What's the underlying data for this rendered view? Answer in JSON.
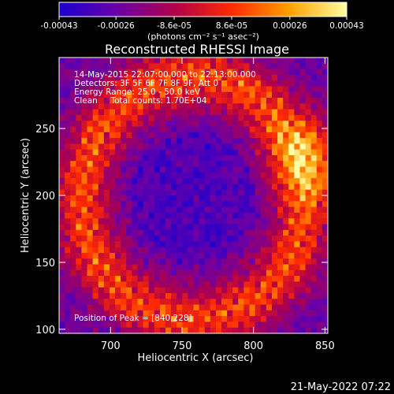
{
  "colorbar": {
    "tick_labels": [
      "-0.00043",
      "-0.00026",
      "-8.6e-05",
      "8.6e-05",
      "0.00026",
      "0.00043"
    ],
    "unit_label": "(photons cm⁻² s⁻¹ asec⁻²)",
    "range": [
      -0.00043,
      0.00043
    ],
    "colors": [
      "#1a00d0",
      "#6a00a8",
      "#b0004a",
      "#ff2a00",
      "#ffa000",
      "#ffffa0"
    ]
  },
  "chart_data": {
    "type": "heatmap",
    "title": "Reconstructed RHESSI Image",
    "xlabel": "Heliocentric X (arcsec)",
    "ylabel": "Heliocentric Y (arcsec)",
    "xlim": [
      664,
      852
    ],
    "ylim": [
      97,
      303
    ],
    "x_ticks": [
      700,
      750,
      800,
      850
    ],
    "y_ticks": [
      100,
      150,
      200,
      250
    ],
    "x_tick_labels": [
      "700",
      "750",
      "800",
      "850"
    ],
    "y_tick_labels": [
      "100",
      "150",
      "200",
      "250"
    ],
    "annotations": [
      "14-May-2015 22:07:00.000 to 22:13:00.000",
      "Detectors: 3F 5F 6F 7F 8F 9F, Att 0",
      "Energy Range: 25.0 - 50.0 keV",
      "Clean     Total counts: 1.70E+04"
    ],
    "peak_label": "Position of Peak = [840,228]",
    "peak_position": [
      840,
      228
    ]
  },
  "footer": {
    "date": "21-May-2022 07:22"
  }
}
